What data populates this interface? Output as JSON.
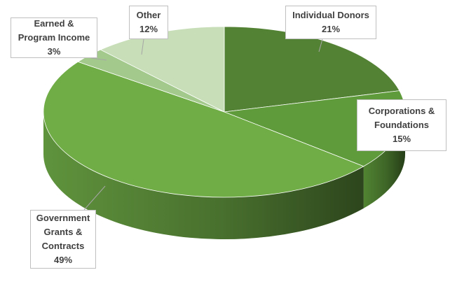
{
  "chart_data": {
    "type": "pie",
    "categories": [
      "Individual Donors",
      "Corporations & Foundations",
      "Government Grants & Contracts",
      "Earned & Program Income",
      "Other"
    ],
    "values": [
      21,
      15,
      49,
      3,
      12
    ],
    "value_labels": [
      "21%",
      "15%",
      "49%",
      "3%",
      "12%"
    ],
    "colors": [
      "#548235",
      "#5f9b3b",
      "#70ad47",
      "#a3c98c",
      "#c7deb8"
    ]
  }
}
